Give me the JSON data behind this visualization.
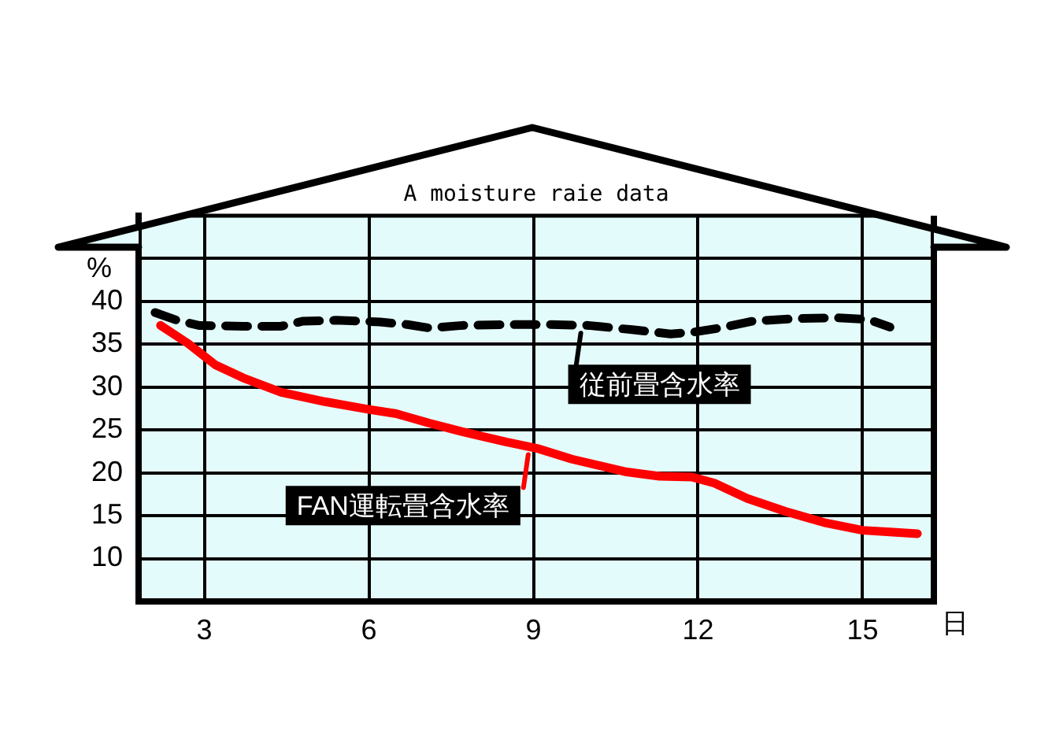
{
  "chart_data": {
    "type": "line",
    "title": "A moisture raie data",
    "xlabel": "日",
    "ylabel": "%",
    "xlim": [
      1.8,
      16.3
    ],
    "ylim": [
      5,
      50
    ],
    "xticks": [
      3,
      6,
      9,
      12,
      15
    ],
    "yticks": [
      10,
      15,
      20,
      25,
      30,
      35,
      40,
      {
        "value": 45,
        "label": null
      }
    ],
    "grid": true,
    "legend": "center",
    "series": [
      {
        "name": "従前畳含水率",
        "color": "#000000",
        "line_style": "dashed",
        "x": [
          2.1,
          2.5,
          2.9,
          3.7,
          4.4,
          4.8,
          5.4,
          6.2,
          6.7,
          7.1,
          7.7,
          8.5,
          9.3,
          10.0,
          10.8,
          11.5,
          11.9,
          12.4,
          13.0,
          13.8,
          14.5,
          15.1,
          15.5
        ],
        "values": [
          38.7,
          37.8,
          37.2,
          37.1,
          37.1,
          37.7,
          37.8,
          37.6,
          37.3,
          36.9,
          37.2,
          37.3,
          37.3,
          37.2,
          36.7,
          36.2,
          36.4,
          36.9,
          37.7,
          38.0,
          38.1,
          37.9,
          37.0
        ]
      },
      {
        "name": "FAN運転畳含水率",
        "color": "#ff0000",
        "line_style": "solid",
        "x": [
          2.2,
          2.7,
          3.2,
          3.7,
          4.4,
          5.2,
          6.0,
          6.5,
          7.1,
          7.7,
          8.5,
          9.1,
          9.7,
          10.7,
          11.3,
          11.9,
          12.3,
          12.9,
          13.6,
          14.3,
          15.0,
          15.5,
          16.0
        ],
        "values": [
          37.2,
          35.1,
          32.6,
          31.1,
          29.4,
          28.3,
          27.4,
          26.9,
          25.8,
          24.8,
          23.6,
          22.8,
          21.6,
          20.1,
          19.6,
          19.5,
          18.8,
          17.0,
          15.5,
          14.2,
          13.3,
          13.1,
          12.9
        ]
      }
    ]
  }
}
